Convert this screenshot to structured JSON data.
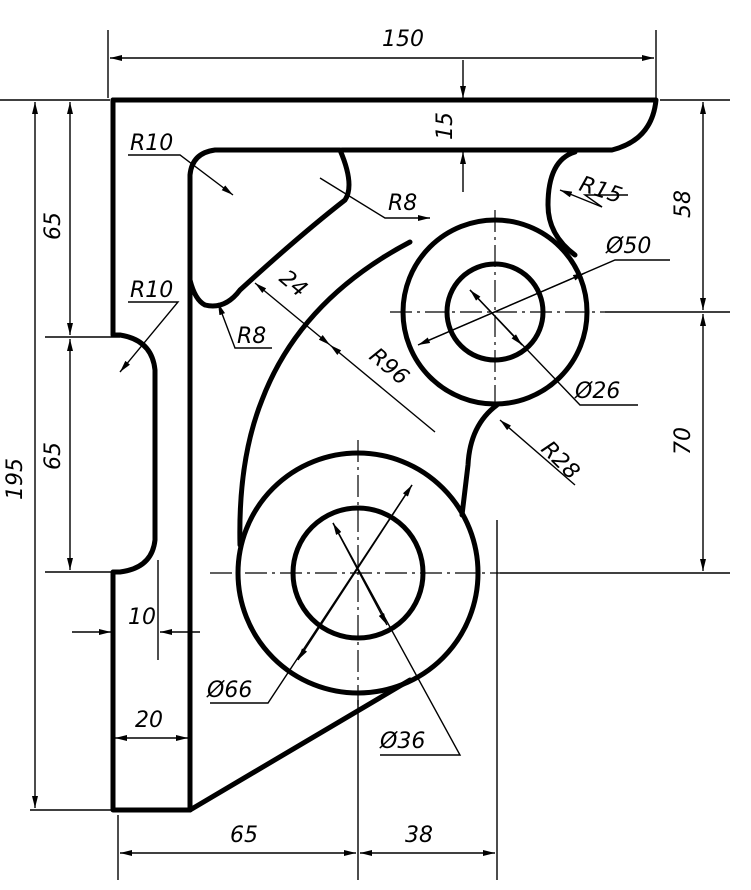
{
  "drawing": {
    "stroke_color": "#000000",
    "background": "#ffffff",
    "labels": {
      "width_total": "150",
      "thick_top": "15",
      "height_top_right": "58",
      "height_mid_right": "70",
      "height_total": "195",
      "height_top_left": "65",
      "height_slot": "65",
      "radius_tl": "R10",
      "radius_slot": "R10",
      "radius_notch_top": "R8",
      "radius_notch_bottom": "R8",
      "radius_r15": "R15",
      "radius_r28": "R28",
      "radius_r96": "R96",
      "rib_24": "24",
      "dia_50": "Ø50",
      "dia_26": "Ø26",
      "dia_66": "Ø66",
      "dia_36": "Ø36",
      "thick_10": "10",
      "thick_20": "20",
      "bottom_65": "65",
      "bottom_38": "38"
    }
  }
}
